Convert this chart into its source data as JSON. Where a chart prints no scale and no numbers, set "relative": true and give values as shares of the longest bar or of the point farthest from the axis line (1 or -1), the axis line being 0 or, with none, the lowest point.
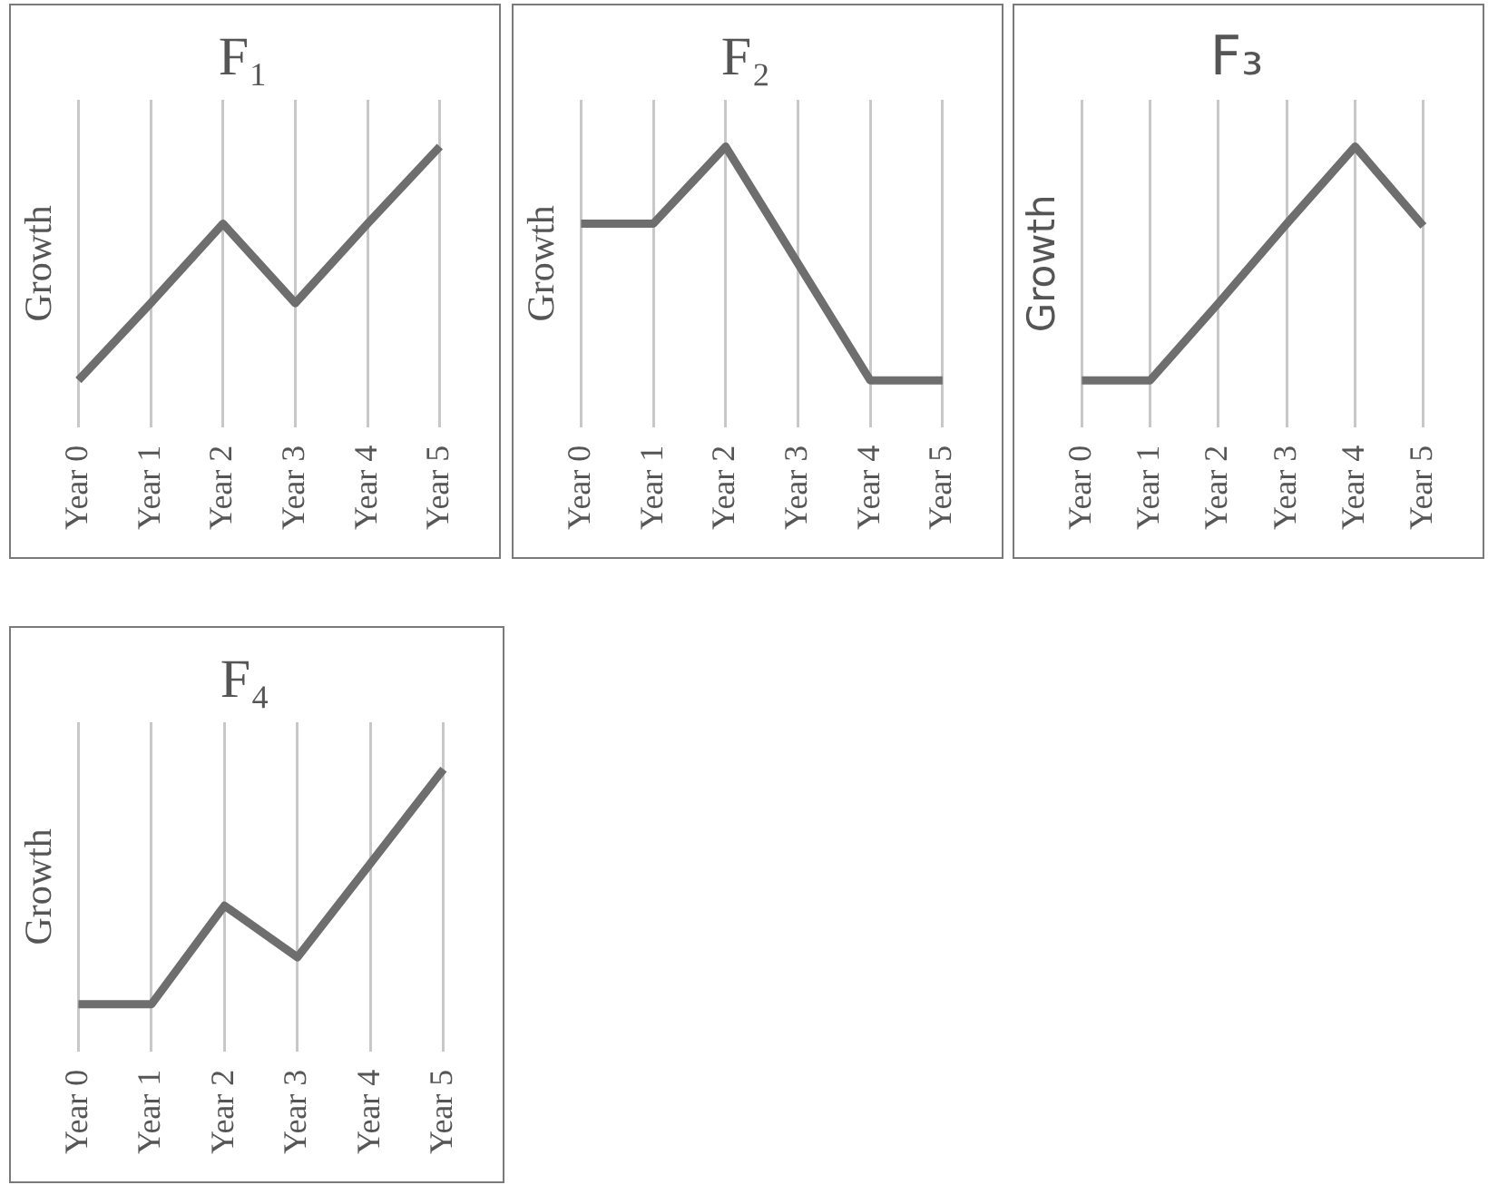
{
  "chart_data": [
    {
      "type": "line",
      "title": "F₁",
      "ylabel": "Growth",
      "categories": [
        "Year 0",
        "Year 1",
        "Year 2",
        "Year 3",
        "Year 4",
        "Year 5"
      ],
      "relative": true,
      "grid": "x",
      "legend": false,
      "marker": "none",
      "series": [
        {
          "color": "#6e6e6e",
          "values": [
            0,
            0.33,
            0.67,
            0.33,
            0.67,
            1
          ]
        }
      ]
    },
    {
      "type": "line",
      "title": "F₂",
      "ylabel": "Growth",
      "categories": [
        "Year 0",
        "Year 1",
        "Year 2",
        "Year 3",
        "Year 4",
        "Year 5"
      ],
      "relative": true,
      "grid": "x",
      "legend": false,
      "marker": "none",
      "series": [
        {
          "color": "#6e6e6e",
          "values": [
            0.67,
            0.67,
            1,
            0.5,
            0,
            0
          ]
        }
      ]
    },
    {
      "type": "line",
      "title": "F₃",
      "ylabel": "Growth",
      "categories": [
        "Year 0",
        "Year 1",
        "Year 2",
        "Year 3",
        "Year 4",
        "Year 5"
      ],
      "relative": true,
      "grid": "x",
      "legend": false,
      "marker": "none",
      "series": [
        {
          "color": "#6e6e6e",
          "values": [
            0,
            0,
            0.33,
            0.67,
            1,
            0.66
          ]
        }
      ]
    },
    {
      "type": "line",
      "title": "F₄",
      "ylabel": "Growth",
      "categories": [
        "Year 0",
        "Year 1",
        "Year 2",
        "Year 3",
        "Year 4",
        "Year 5"
      ],
      "relative": true,
      "grid": "x",
      "legend": false,
      "marker": "none",
      "series": [
        {
          "color": "#6e6e6e",
          "values": [
            0,
            0,
            0.42,
            0.2,
            0.6,
            1
          ]
        }
      ]
    }
  ]
}
